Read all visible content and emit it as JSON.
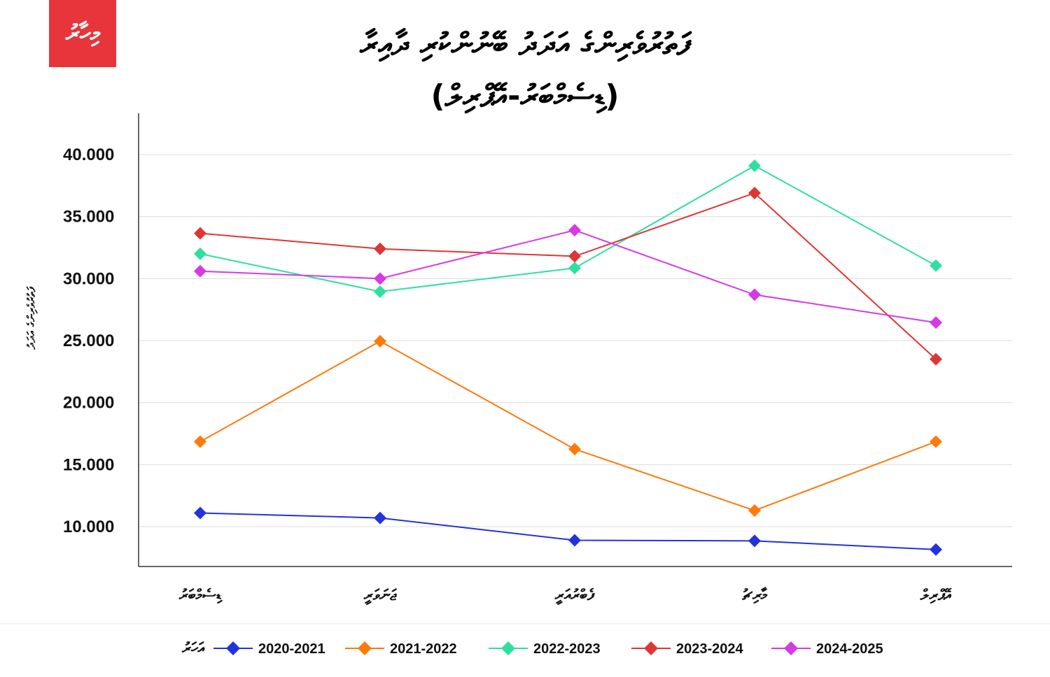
{
  "logo": "މިހާރު",
  "chart_data": {
    "type": "line",
    "title": "ފަތުރުވެރިންގެ އަދަދު ބޭނުންކުރި ދާއިރާ",
    "subtitle": "(ޑިސެމްބަރު-އޭޕްރިލް)",
    "ylabel": "ފަތުރުވެރިންގެ އަދަދު",
    "legend_title": "އަހަރު",
    "legend_position": "bottom",
    "categories": [
      "ޑިސެމްބަރު",
      "ޖަނަވަރީ",
      "ފެބްރުއަރީ",
      "މާރިޗު",
      "އޭޕްރިލް"
    ],
    "yticks": [
      "40.000",
      "35.000",
      "30.000",
      "25.000",
      "20.000",
      "15.000",
      "10.000"
    ],
    "ytick_values": [
      40000,
      35000,
      30000,
      25000,
      20000,
      15000,
      10000
    ],
    "ylim": [
      6800,
      43000
    ],
    "grid": true,
    "series": [
      {
        "name": "2020-2021",
        "color": "#2233dd",
        "values": [
          11100,
          10700,
          8900,
          8850,
          8150
        ]
      },
      {
        "name": "2021-2022",
        "color": "#ff7a0a",
        "values": [
          16850,
          24950,
          16250,
          11300,
          16850
        ]
      },
      {
        "name": "2022-2023",
        "color": "#2ee0a0",
        "values": [
          32000,
          28950,
          30850,
          39100,
          31050
        ]
      },
      {
        "name": "2023-2024",
        "color": "#e03535",
        "values": [
          33650,
          32400,
          31800,
          36900,
          23500
        ]
      },
      {
        "name": "2024-2025",
        "color": "#d63ae6",
        "values": [
          30600,
          30000,
          33900,
          28700,
          26450
        ]
      }
    ]
  }
}
